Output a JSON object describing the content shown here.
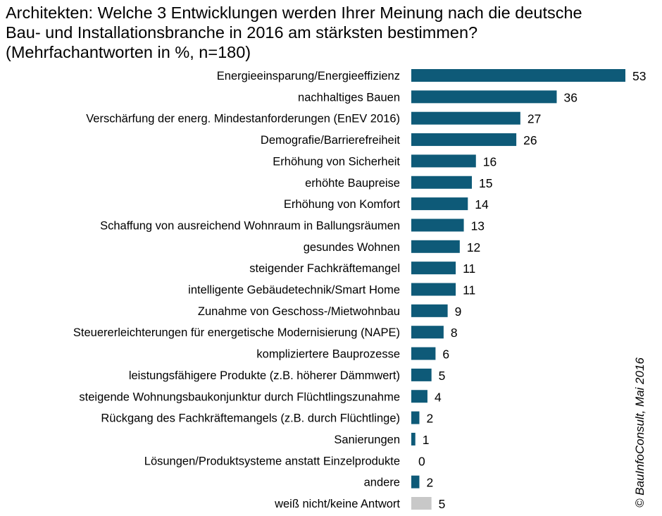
{
  "title": {
    "line1": "Architekten: Welche 3 Entwicklungen  werden Ihrer Meinung nach die deutsche",
    "line2": "Bau- und Installationsbranche  in 2016 am stärksten bestimmen?",
    "line3": "(Mehrfachantworten  in %, n=180)"
  },
  "copyright": "© BauInfoConsult, Mai 2016",
  "colors": {
    "bar": "#0e5a78",
    "bar_no_answer": "#c8c8c8",
    "text": "#000000"
  },
  "chart_data": {
    "type": "bar",
    "orientation": "horizontal",
    "categories": [
      "Energieeinsparung/Energieeffizienz",
      "nachhaltiges Bauen",
      "Verschärfung der energ. Mindestanforderungen (EnEV 2016)",
      "Demografie/Barrierefreiheit",
      "Erhöhung von Sicherheit",
      "erhöhte Baupreise",
      "Erhöhung von Komfort",
      "Schaffung von ausreichend Wohnraum in Ballungsräumen",
      "gesundes Wohnen",
      "steigender Fachkräftemangel",
      "intelligente Gebäudetechnik/Smart Home",
      "Zunahme von Geschoss-/Mietwohnbau",
      "Steuererleichterungen für energetische Modernisierung (NAPE)",
      "kompliziertere Bauprozesse",
      "leistungsfähigere Produkte (z.B. höherer Dämmwert)",
      "steigende Wohnungsbaukonjunktur durch Flüchtlingszunahme",
      "Rückgang des Fachkräftemangels (z.B. durch Flüchtlinge)",
      "Sanierungen",
      "Lösungen/Produktsysteme anstatt Einzelprodukte",
      "andere",
      "weiß nicht/keine Antwort"
    ],
    "values": [
      53,
      36,
      27,
      26,
      16,
      15,
      14,
      13,
      12,
      11,
      11,
      9,
      8,
      6,
      5,
      4,
      2,
      1,
      0,
      2,
      5
    ],
    "value_labels": [
      "53",
      "36",
      "27",
      "26",
      "16",
      "15",
      "14",
      "13",
      "12",
      "11",
      "11",
      "9",
      "8",
      "6",
      "5",
      "4",
      "2",
      "1",
      "0",
      "2",
      "5"
    ],
    "highlight_gray_last": true,
    "xlim": [
      0,
      53
    ],
    "grid": false
  }
}
